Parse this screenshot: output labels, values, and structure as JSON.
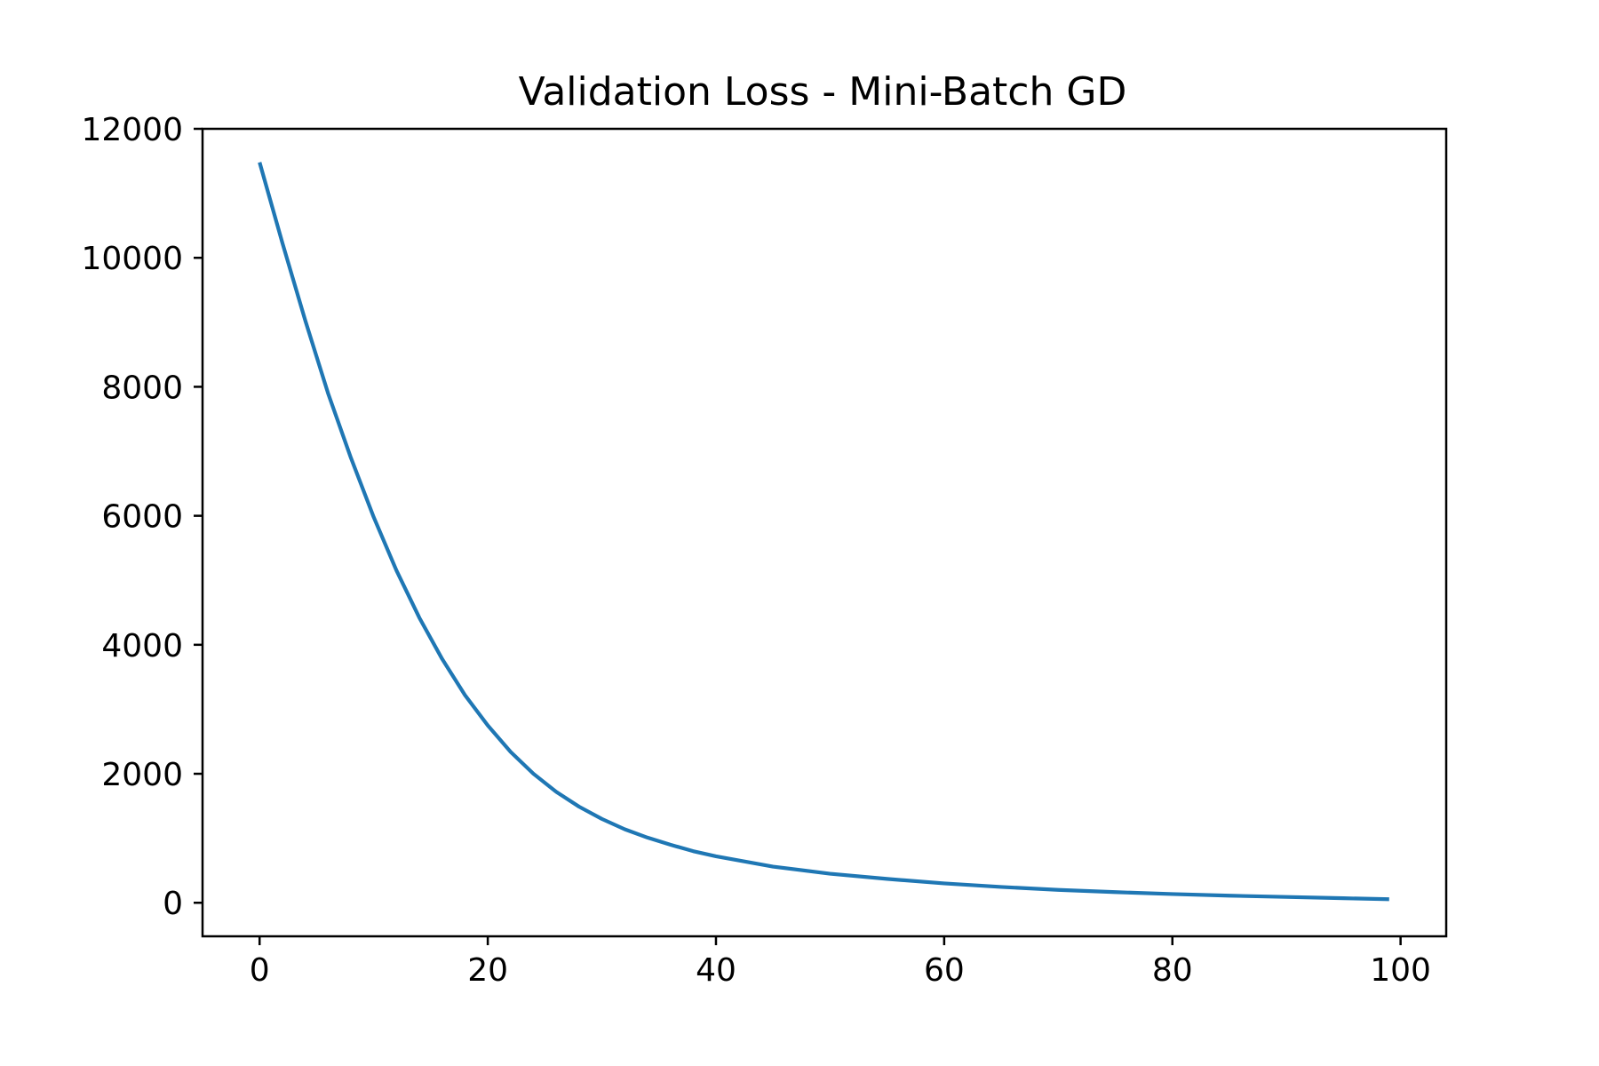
{
  "chart_data": {
    "type": "line",
    "title": "Validation Loss - Mini-Batch GD",
    "xlabel": "",
    "ylabel": "",
    "xlim": [
      -5,
      104
    ],
    "ylim": [
      -520,
      12000
    ],
    "grid": false,
    "x_ticks": [
      0,
      20,
      40,
      60,
      80,
      100
    ],
    "y_ticks": [
      0,
      2000,
      4000,
      6000,
      8000,
      10000,
      12000
    ],
    "colors": {
      "line": "#1f77b4"
    },
    "series": [
      {
        "x": [
          0,
          2,
          4,
          6,
          8,
          10,
          12,
          14,
          16,
          18,
          20,
          22,
          24,
          26,
          28,
          30,
          32,
          34,
          36,
          38,
          40,
          45,
          50,
          55,
          60,
          65,
          70,
          75,
          80,
          85,
          90,
          95,
          99
        ],
        "values": [
          11480,
          10230,
          9030,
          7900,
          6900,
          5980,
          5150,
          4420,
          3780,
          3220,
          2750,
          2340,
          2000,
          1720,
          1490,
          1300,
          1140,
          1010,
          900,
          800,
          720,
          560,
          450,
          370,
          300,
          245,
          200,
          165,
          135,
          110,
          90,
          70,
          55
        ]
      }
    ]
  }
}
